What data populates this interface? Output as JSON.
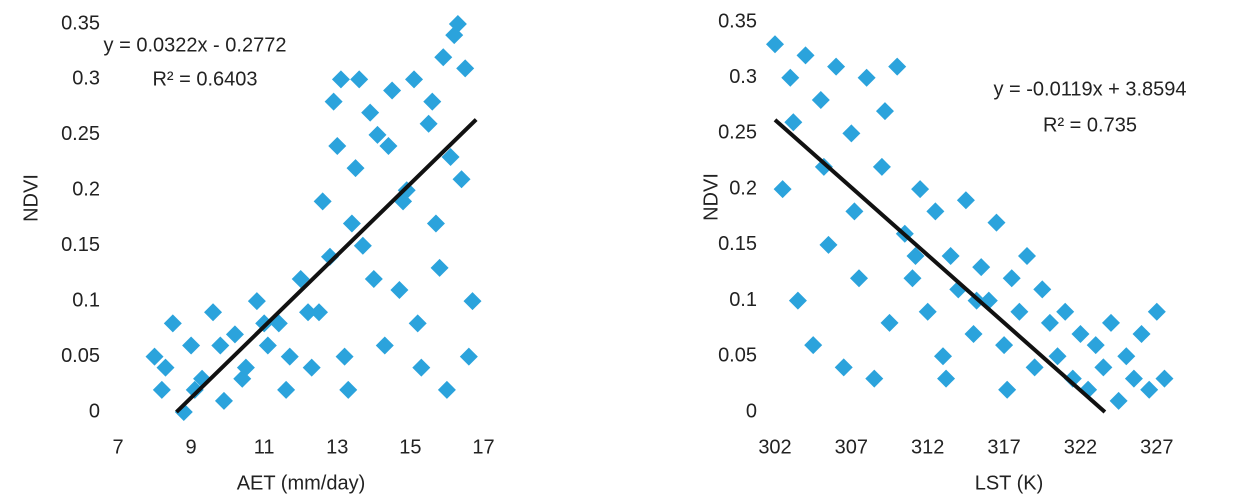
{
  "chart_data": [
    {
      "type": "scatter",
      "x_label": "AET (mm/day)",
      "y_label": "NDVI",
      "color": "#2ba3dc",
      "annotations": [
        "y = 0.0322x - 0.2772",
        "R² = 0.6403"
      ],
      "xlim": [
        7,
        18
      ],
      "ylim": [
        0,
        0.35
      ],
      "xticks": [
        7,
        9,
        11,
        13,
        15,
        17
      ],
      "yticks": [
        0,
        0.05,
        0.1,
        0.15,
        0.2,
        0.25,
        0.3,
        0.35
      ],
      "x": [
        8.0,
        8.2,
        8.5,
        8.8,
        9.0,
        9.3,
        9.6,
        9.9,
        10.2,
        10.5,
        10.8,
        11.1,
        11.4,
        11.7,
        12.0,
        12.3,
        12.6,
        12.9,
        13.1,
        13.3,
        13.5,
        13.7,
        13.9,
        14.1,
        14.3,
        14.5,
        14.7,
        14.9,
        15.1,
        15.3,
        15.5,
        15.7,
        15.9,
        16.1,
        16.3,
        16.5,
        16.7,
        8.3,
        9.1,
        9.8,
        10.4,
        11.0,
        11.6,
        12.2,
        12.8,
        13.2,
        13.6,
        14.0,
        14.4,
        14.8,
        15.2,
        15.6,
        16.0,
        16.4,
        16.2,
        13.0,
        12.5,
        13.4,
        15.8,
        16.6
      ],
      "values": [
        0.05,
        0.02,
        0.08,
        0.0,
        0.06,
        0.03,
        0.09,
        0.01,
        0.07,
        0.04,
        0.1,
        0.06,
        0.08,
        0.05,
        0.12,
        0.04,
        0.19,
        0.28,
        0.3,
        0.02,
        0.22,
        0.15,
        0.27,
        0.25,
        0.06,
        0.29,
        0.11,
        0.2,
        0.3,
        0.04,
        0.26,
        0.17,
        0.32,
        0.23,
        0.35,
        0.31,
        0.1,
        0.04,
        0.02,
        0.06,
        0.03,
        0.08,
        0.02,
        0.09,
        0.14,
        0.05,
        0.3,
        0.12,
        0.24,
        0.19,
        0.08,
        0.28,
        0.02,
        0.21,
        0.34,
        0.24,
        0.09,
        0.17,
        0.13,
        0.05
      ],
      "trendline": {
        "x": [
          8.6,
          16.8
        ],
        "values": [
          0.0,
          0.2638
        ]
      }
    },
    {
      "type": "scatter",
      "x_label": "LST (K)",
      "y_label": "NDVI",
      "color": "#2ba3dc",
      "annotations": [
        "y = -0.0119x + 3.8594",
        "R² = 0.735"
      ],
      "xlim": [
        302,
        329.5
      ],
      "ylim": [
        0,
        0.35
      ],
      "xticks": [
        302,
        307,
        312,
        317,
        322,
        327
      ],
      "yticks": [
        0,
        0.05,
        0.1,
        0.15,
        0.2,
        0.25,
        0.3,
        0.35
      ],
      "x": [
        302,
        302.5,
        303,
        303.5,
        304,
        304.5,
        305,
        305.5,
        306,
        306.5,
        307,
        307.5,
        308,
        308.5,
        309,
        309.5,
        310,
        310.5,
        311,
        311.5,
        312,
        312.5,
        313,
        313.5,
        314,
        314.5,
        315,
        315.5,
        316,
        316.5,
        317,
        317.5,
        318,
        318.5,
        319,
        319.5,
        320,
        320.5,
        321,
        321.5,
        322,
        322.5,
        323,
        323.5,
        324,
        324.5,
        325,
        325.5,
        326,
        326.5,
        327,
        327.5,
        303.2,
        305.2,
        307.2,
        309.2,
        311.2,
        313.2,
        315.2,
        317.2
      ],
      "values": [
        0.33,
        0.2,
        0.3,
        0.1,
        0.32,
        0.06,
        0.28,
        0.15,
        0.31,
        0.04,
        0.25,
        0.12,
        0.3,
        0.03,
        0.22,
        0.08,
        0.31,
        0.16,
        0.12,
        0.2,
        0.09,
        0.18,
        0.05,
        0.14,
        0.11,
        0.19,
        0.07,
        0.13,
        0.1,
        0.17,
        0.06,
        0.12,
        0.09,
        0.14,
        0.04,
        0.11,
        0.08,
        0.05,
        0.09,
        0.03,
        0.07,
        0.02,
        0.06,
        0.04,
        0.08,
        0.01,
        0.05,
        0.03,
        0.07,
        0.02,
        0.09,
        0.03,
        0.26,
        0.22,
        0.18,
        0.27,
        0.14,
        0.03,
        0.1,
        0.02
      ],
      "trendline": {
        "x": [
          302,
          323.6
        ],
        "values": [
          0.2622,
          0.0
        ]
      }
    }
  ]
}
